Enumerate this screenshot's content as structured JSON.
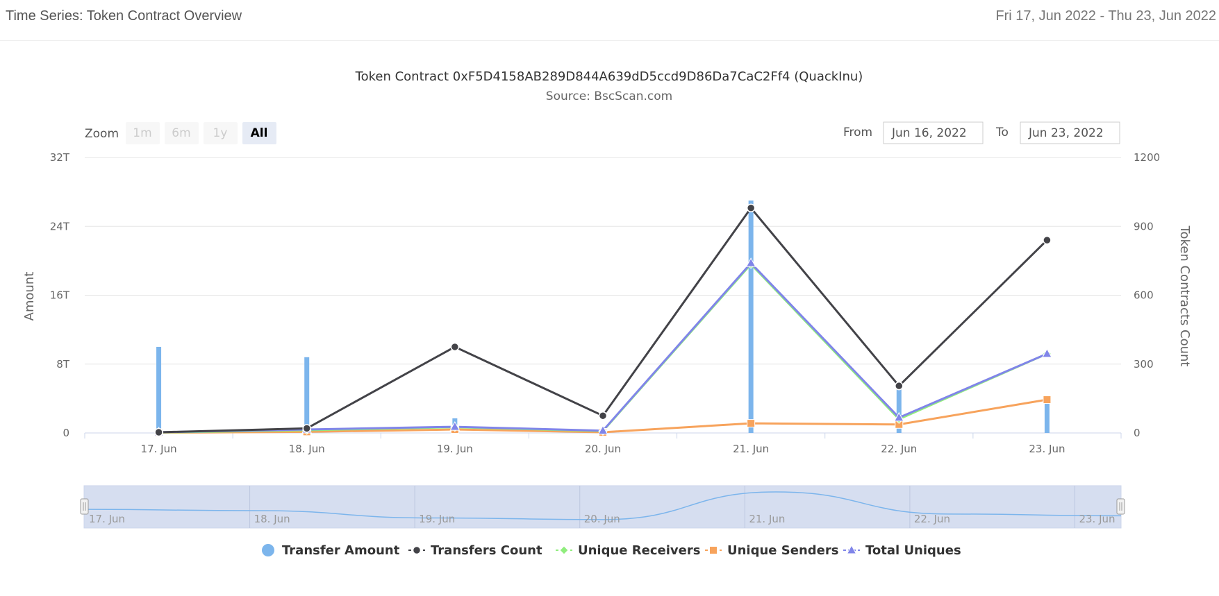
{
  "header": {
    "title": "Time Series: Token Contract Overview",
    "date_range": "Fri 17, Jun 2022 - Thu 23, Jun 2022"
  },
  "range_selector": {
    "zoom_label": "Zoom",
    "buttons": [
      "1m",
      "6m",
      "1y",
      "All"
    ],
    "active": "All",
    "from_label": "From",
    "from_value": "Jun 16, 2022",
    "to_label": "To",
    "to_value": "Jun 23, 2022"
  },
  "colors": {
    "transfer_amount": "#7cb5ec",
    "transfers_count": "#434348",
    "unique_receivers": "#90ed7d",
    "unique_senders": "#f7a35c",
    "total_uniques": "#8085e9",
    "navigator_fill": "#d2daee"
  },
  "chart_data": {
    "type": "line",
    "title": "Token Contract 0xF5D4158AB289D844A639dD5ccd9D86Da7CaC2Ff4 (QuackInu)",
    "subtitle": "Source: BscScan.com",
    "categories": [
      "17. Jun",
      "18. Jun",
      "19. Jun",
      "20. Jun",
      "21. Jun",
      "22. Jun",
      "23. Jun"
    ],
    "y_left": {
      "label": "Amount",
      "ticks": [
        "0",
        "8T",
        "16T",
        "24T",
        "32T"
      ],
      "range": [
        0,
        32
      ]
    },
    "y_right": {
      "label": "Token Contracts Count",
      "ticks": [
        "0",
        "300",
        "600",
        "900",
        "1200"
      ],
      "range": [
        0,
        1200
      ]
    },
    "series": [
      {
        "name": "Transfer Amount",
        "type": "column",
        "axis": "left",
        "unit": "T",
        "values": [
          10,
          8.8,
          1.7,
          0.1,
          27,
          5.5,
          3.8
        ]
      },
      {
        "name": "Transfers Count",
        "type": "line",
        "axis": "right",
        "values": [
          3,
          20,
          375,
          75,
          980,
          205,
          840
        ]
      },
      {
        "name": "Unique Receivers",
        "type": "line",
        "axis": "right",
        "values": [
          2,
          12,
          25,
          8,
          735,
          60,
          345
        ]
      },
      {
        "name": "Unique Senders",
        "type": "line",
        "axis": "right",
        "values": [
          1,
          5,
          15,
          3,
          42,
          37,
          145
        ]
      },
      {
        "name": "Total Uniques",
        "type": "line",
        "axis": "right",
        "values": [
          3,
          15,
          27,
          10,
          740,
          67,
          345
        ]
      }
    ],
    "navigator_labels": [
      "17. Jun",
      "18. Jun",
      "19. Jun",
      "20. Jun",
      "21. Jun",
      "22. Jun",
      "23. Jun"
    ]
  }
}
